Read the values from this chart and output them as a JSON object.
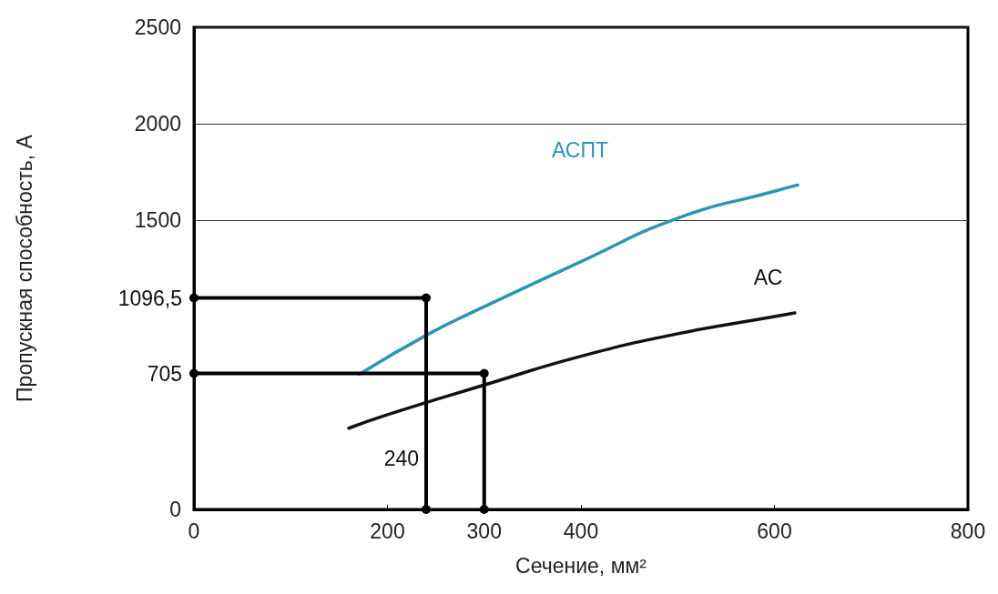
{
  "chart_data": {
    "type": "line",
    "xlabel": "Сечение, мм²",
    "ylabel": "Пропускная способность, А",
    "xlim": [
      0,
      800
    ],
    "xticks": [
      0,
      200,
      300,
      400,
      600,
      800
    ],
    "ylim": [
      0,
      2500
    ],
    "yticks": [
      0,
      1500,
      2000,
      2500
    ],
    "grid": "y",
    "legend": false,
    "annotations": [
      {
        "text": "240",
        "x": 240,
        "y": 0
      }
    ],
    "marker": "none",
    "series": [
      {
        "name": "АСПТ",
        "color": "#2a96b4",
        "x": [
          171,
          243,
          300,
          400,
          500,
          600,
          624
        ],
        "values": [
          701,
          911,
          1051,
          1285,
          1510,
          1650,
          1682
        ]
      },
      {
        "name": "АС",
        "color": "#111111",
        "x": [
          160,
          200,
          300,
          400,
          500,
          600,
          621
        ],
        "values": [
          421,
          491,
          645,
          794,
          911,
          1000,
          1019
        ]
      },
      {
        "color": "#000000",
        "marker": "circle",
        "x": [
          0,
          240,
          240
        ],
        "values": [
          1096.5,
          1096.5,
          0
        ],
        "value_labels": [
          "1096,5",
          null,
          null
        ]
      },
      {
        "color": "#000000",
        "marker": "circle",
        "x": [
          0,
          300,
          300
        ],
        "values": [
          705,
          705,
          0
        ],
        "value_labels": [
          "705",
          null,
          null
        ]
      }
    ]
  }
}
